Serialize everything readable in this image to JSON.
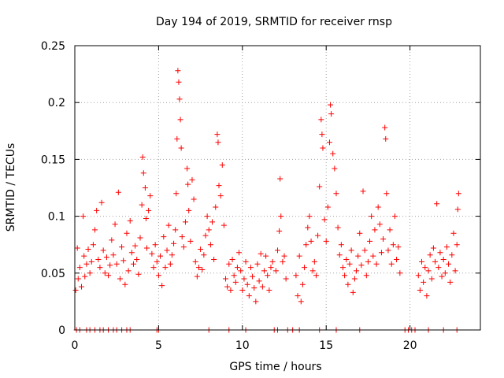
{
  "chart_data": {
    "type": "scatter",
    "title": "Day 194 of 2019, SRMTID for receiver rnsp",
    "xlabel": "GPS time / hours",
    "ylabel": "SRMTID / TECUs",
    "xlim": [
      0,
      24.2
    ],
    "ylim": [
      0,
      0.25
    ],
    "xticks": [
      0,
      5,
      10,
      15,
      20
    ],
    "xtick_labels": [
      "0",
      "5",
      "10",
      "15",
      "20"
    ],
    "yticks": [
      0,
      0.05,
      0.1,
      0.15,
      0.2,
      0.25
    ],
    "ytick_labels": [
      "0",
      "0.05",
      "0.1",
      "0.15",
      "0.2",
      "0.25"
    ],
    "grid": true,
    "marker": "+",
    "color": "#ff0000",
    "series": [
      {
        "name": "SRMTID",
        "points": [
          [
            0.05,
            0.035
          ],
          [
            0.15,
            0.072
          ],
          [
            0.2,
            0.045
          ],
          [
            0.3,
            0.055
          ],
          [
            0.4,
            0.038
          ],
          [
            0.5,
            0.1
          ],
          [
            0.55,
            0.065
          ],
          [
            0.6,
            0.047
          ],
          [
            0.7,
            0.058
          ],
          [
            0.8,
            0.071
          ],
          [
            0.9,
            0.05
          ],
          [
            1.0,
            0.06
          ],
          [
            1.1,
            0.075
          ],
          [
            1.2,
            0.088
          ],
          [
            1.3,
            0.105
          ],
          [
            1.4,
            0.062
          ],
          [
            1.5,
            0.055
          ],
          [
            1.6,
            0.112
          ],
          [
            1.7,
            0.07
          ],
          [
            1.8,
            0.05
          ],
          [
            1.9,
            0.064
          ],
          [
            2.0,
            0.048
          ],
          [
            2.1,
            0.057
          ],
          [
            2.2,
            0.079
          ],
          [
            2.3,
            0.066
          ],
          [
            2.4,
            0.093
          ],
          [
            2.5,
            0.058
          ],
          [
            2.6,
            0.121
          ],
          [
            2.7,
            0.045
          ],
          [
            2.8,
            0.073
          ],
          [
            2.9,
            0.061
          ],
          [
            3.0,
            0.04
          ],
          [
            3.1,
            0.085
          ],
          [
            3.2,
            0.052
          ],
          [
            3.3,
            0.096
          ],
          [
            3.4,
            0.068
          ],
          [
            3.5,
            0.058
          ],
          [
            3.6,
            0.074
          ],
          [
            3.7,
            0.062
          ],
          [
            3.8,
            0.049
          ],
          [
            3.9,
            0.081
          ],
          [
            4.0,
            0.11
          ],
          [
            4.05,
            0.152
          ],
          [
            4.1,
            0.138
          ],
          [
            4.2,
            0.125
          ],
          [
            4.25,
            0.098
          ],
          [
            4.3,
            0.072
          ],
          [
            4.4,
            0.105
          ],
          [
            4.5,
            0.118
          ],
          [
            4.6,
            0.067
          ],
          [
            4.7,
            0.055
          ],
          [
            4.8,
            0.075
          ],
          [
            4.9,
            0.06
          ],
          [
            5.0,
            0.048
          ],
          [
            5.1,
            0.065
          ],
          [
            5.2,
            0.039
          ],
          [
            5.3,
            0.082
          ],
          [
            5.4,
            0.055
          ],
          [
            5.5,
            0.07
          ],
          [
            5.6,
            0.092
          ],
          [
            5.7,
            0.058
          ],
          [
            5.8,
            0.066
          ],
          [
            5.9,
            0.076
          ],
          [
            6.0,
            0.088
          ],
          [
            6.05,
            0.12
          ],
          [
            6.1,
            0.168
          ],
          [
            6.15,
            0.228
          ],
          [
            6.2,
            0.218
          ],
          [
            6.25,
            0.203
          ],
          [
            6.3,
            0.185
          ],
          [
            6.35,
            0.16
          ],
          [
            6.4,
            0.082
          ],
          [
            6.5,
            0.073
          ],
          [
            6.6,
            0.095
          ],
          [
            6.7,
            0.142
          ],
          [
            6.75,
            0.128
          ],
          [
            6.8,
            0.105
          ],
          [
            6.9,
            0.078
          ],
          [
            7.0,
            0.132
          ],
          [
            7.1,
            0.115
          ],
          [
            7.2,
            0.06
          ],
          [
            7.3,
            0.047
          ],
          [
            7.4,
            0.055
          ],
          [
            7.5,
            0.071
          ],
          [
            7.6,
            0.053
          ],
          [
            7.7,
            0.066
          ],
          [
            7.8,
            0.083
          ],
          [
            7.9,
            0.1
          ],
          [
            8.0,
            0.088
          ],
          [
            8.1,
            0.075
          ],
          [
            8.2,
            0.095
          ],
          [
            8.3,
            0.062
          ],
          [
            8.4,
            0.108
          ],
          [
            8.5,
            0.172
          ],
          [
            8.55,
            0.165
          ],
          [
            8.6,
            0.127
          ],
          [
            8.7,
            0.118
          ],
          [
            8.8,
            0.145
          ],
          [
            8.9,
            0.092
          ],
          [
            9.0,
            0.045
          ],
          [
            9.1,
            0.038
          ],
          [
            9.2,
            0.058
          ],
          [
            9.3,
            0.035
          ],
          [
            9.4,
            0.062
          ],
          [
            9.5,
            0.048
          ],
          [
            9.6,
            0.042
          ],
          [
            9.7,
            0.055
          ],
          [
            9.8,
            0.068
          ],
          [
            9.9,
            0.052
          ],
          [
            10.0,
            0.035
          ],
          [
            10.1,
            0.045
          ],
          [
            10.2,
            0.06
          ],
          [
            10.3,
            0.04
          ],
          [
            10.4,
            0.03
          ],
          [
            10.5,
            0.055
          ],
          [
            10.6,
            0.047
          ],
          [
            10.7,
            0.037
          ],
          [
            10.8,
            0.025
          ],
          [
            10.9,
            0.058
          ],
          [
            11.0,
            0.043
          ],
          [
            11.1,
            0.067
          ],
          [
            11.2,
            0.038
          ],
          [
            11.3,
            0.052
          ],
          [
            11.4,
            0.065
          ],
          [
            11.5,
            0.048
          ],
          [
            11.6,
            0.035
          ],
          [
            11.7,
            0.055
          ],
          [
            11.8,
            0.06
          ],
          [
            12.0,
            0.052
          ],
          [
            12.1,
            0.07
          ],
          [
            12.2,
            0.087
          ],
          [
            12.25,
            0.133
          ],
          [
            12.3,
            0.1
          ],
          [
            12.4,
            0.06
          ],
          [
            12.5,
            0.065
          ],
          [
            12.6,
            0.045
          ],
          [
            13.2,
            0.048
          ],
          [
            13.3,
            0.03
          ],
          [
            13.4,
            0.065
          ],
          [
            13.5,
            0.025
          ],
          [
            13.6,
            0.04
          ],
          [
            13.7,
            0.055
          ],
          [
            13.8,
            0.075
          ],
          [
            13.9,
            0.09
          ],
          [
            14.0,
            0.1
          ],
          [
            14.1,
            0.078
          ],
          [
            14.2,
            0.052
          ],
          [
            14.3,
            0.06
          ],
          [
            14.4,
            0.048
          ],
          [
            14.5,
            0.083
          ],
          [
            14.6,
            0.126
          ],
          [
            14.7,
            0.185
          ],
          [
            14.75,
            0.172
          ],
          [
            14.8,
            0.16
          ],
          [
            14.9,
            0.097
          ],
          [
            15.0,
            0.078
          ],
          [
            15.1,
            0.108
          ],
          [
            15.2,
            0.165
          ],
          [
            15.25,
            0.198
          ],
          [
            15.3,
            0.19
          ],
          [
            15.4,
            0.155
          ],
          [
            15.5,
            0.142
          ],
          [
            15.6,
            0.12
          ],
          [
            15.7,
            0.09
          ],
          [
            15.8,
            0.066
          ],
          [
            15.9,
            0.075
          ],
          [
            16.0,
            0.055
          ],
          [
            16.1,
            0.048
          ],
          [
            16.2,
            0.062
          ],
          [
            16.3,
            0.04
          ],
          [
            16.4,
            0.058
          ],
          [
            16.5,
            0.07
          ],
          [
            16.6,
            0.033
          ],
          [
            16.7,
            0.045
          ],
          [
            16.8,
            0.052
          ],
          [
            16.9,
            0.065
          ],
          [
            17.0,
            0.085
          ],
          [
            17.1,
            0.057
          ],
          [
            17.2,
            0.122
          ],
          [
            17.3,
            0.07
          ],
          [
            17.4,
            0.048
          ],
          [
            17.5,
            0.06
          ],
          [
            17.6,
            0.078
          ],
          [
            17.7,
            0.1
          ],
          [
            17.8,
            0.065
          ],
          [
            17.9,
            0.088
          ],
          [
            18.0,
            0.058
          ],
          [
            18.1,
            0.108
          ],
          [
            18.2,
            0.093
          ],
          [
            18.3,
            0.068
          ],
          [
            18.4,
            0.08
          ],
          [
            18.5,
            0.178
          ],
          [
            18.55,
            0.168
          ],
          [
            18.6,
            0.12
          ],
          [
            18.7,
            0.07
          ],
          [
            18.8,
            0.088
          ],
          [
            18.9,
            0.058
          ],
          [
            19.0,
            0.075
          ],
          [
            19.1,
            0.1
          ],
          [
            19.2,
            0.062
          ],
          [
            19.3,
            0.073
          ],
          [
            19.4,
            0.05
          ],
          [
            20.5,
            0.048
          ],
          [
            20.6,
            0.035
          ],
          [
            20.7,
            0.06
          ],
          [
            20.8,
            0.042
          ],
          [
            20.9,
            0.055
          ],
          [
            21.0,
            0.03
          ],
          [
            21.1,
            0.052
          ],
          [
            21.2,
            0.066
          ],
          [
            21.3,
            0.045
          ],
          [
            21.4,
            0.072
          ],
          [
            21.5,
            0.06
          ],
          [
            21.6,
            0.111
          ],
          [
            21.7,
            0.055
          ],
          [
            21.8,
            0.068
          ],
          [
            21.9,
            0.047
          ],
          [
            22.0,
            0.062
          ],
          [
            22.1,
            0.05
          ],
          [
            22.2,
            0.073
          ],
          [
            22.3,
            0.058
          ],
          [
            22.4,
            0.042
          ],
          [
            22.5,
            0.066
          ],
          [
            22.6,
            0.085
          ],
          [
            22.7,
            0.052
          ],
          [
            22.8,
            0.075
          ],
          [
            22.85,
            0.106
          ],
          [
            22.9,
            0.12
          ]
        ],
        "zero_points": [
          0.1,
          0.3,
          0.7,
          0.9,
          1.2,
          1.5,
          1.7,
          2.0,
          2.3,
          2.5,
          2.8,
          3.1,
          3.3,
          4.9,
          5.0,
          8.0,
          9.2,
          10.2,
          11.9,
          12.1,
          12.7,
          13.0,
          13.4,
          14.6,
          15.6,
          17.0,
          19.7,
          19.9,
          20.1,
          20.3,
          21.1,
          22.0,
          22.8
        ]
      }
    ]
  }
}
